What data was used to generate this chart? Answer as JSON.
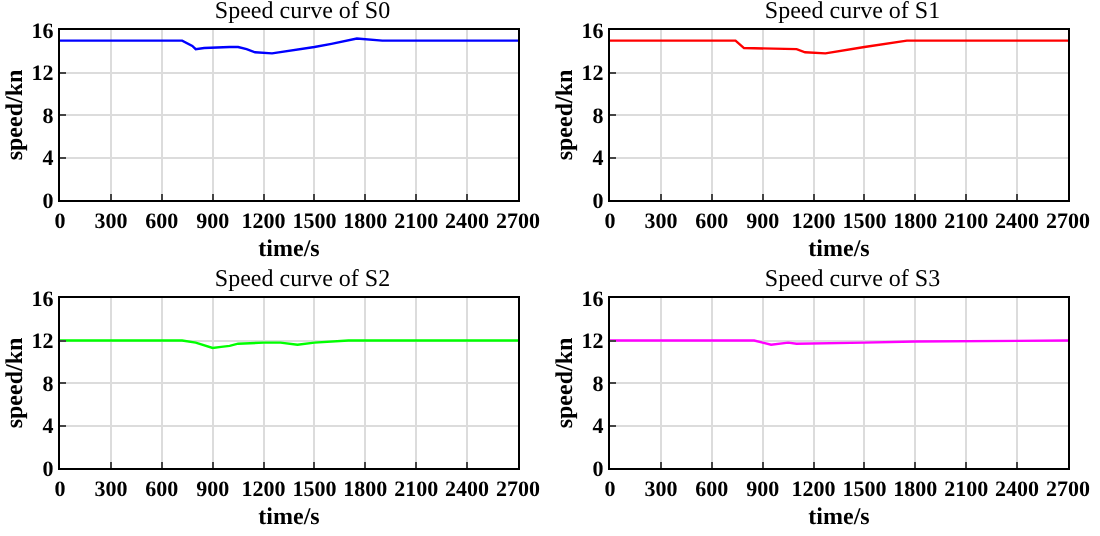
{
  "chart_data": [
    {
      "type": "line",
      "title": "Speed curve of S0",
      "xlabel": "time/s",
      "ylabel": "speed/kn",
      "xlim": [
        0,
        2700
      ],
      "xticks": [
        0,
        300,
        600,
        900,
        1200,
        1500,
        1800,
        2100,
        2400,
        2700
      ],
      "ylim": [
        0,
        16
      ],
      "yticks": [
        0,
        4,
        8,
        12,
        16
      ],
      "grid": true,
      "marker": "none",
      "line_style": "solid",
      "series": [
        {
          "color": "#0000ff",
          "x": [
            0,
            720,
            780,
            800,
            850,
            1000,
            1050,
            1100,
            1150,
            1250,
            1500,
            1600,
            1750,
            1900,
            2700
          ],
          "values": [
            15,
            15,
            14.5,
            14.2,
            14.3,
            14.4,
            14.4,
            14.2,
            13.9,
            13.8,
            14.4,
            14.7,
            15.2,
            15,
            15
          ]
        }
      ]
    },
    {
      "type": "line",
      "title": "Speed curve of S1",
      "xlabel": "time/s",
      "ylabel": "speed/kn",
      "xlim": [
        0,
        2700
      ],
      "xticks": [
        0,
        300,
        600,
        900,
        1200,
        1500,
        1800,
        2100,
        2400,
        2700
      ],
      "ylim": [
        0,
        16
      ],
      "yticks": [
        0,
        4,
        8,
        12,
        16
      ],
      "grid": true,
      "marker": "none",
      "line_style": "solid",
      "series": [
        {
          "color": "#ff0000",
          "x": [
            0,
            740,
            790,
            1100,
            1150,
            1270,
            1500,
            1750,
            2700
          ],
          "values": [
            15,
            15,
            14.3,
            14.2,
            13.9,
            13.8,
            14.4,
            15,
            15
          ]
        }
      ]
    },
    {
      "type": "line",
      "title": "Speed curve of S2",
      "xlabel": "time/s",
      "ylabel": "speed/kn",
      "xlim": [
        0,
        2700
      ],
      "xticks": [
        0,
        300,
        600,
        900,
        1200,
        1500,
        1800,
        2100,
        2400,
        2700
      ],
      "ylim": [
        0,
        16
      ],
      "yticks": [
        0,
        4,
        8,
        12,
        16
      ],
      "grid": true,
      "marker": "none",
      "line_style": "solid",
      "series": [
        {
          "color": "#00ff00",
          "x": [
            0,
            720,
            800,
            900,
            950,
            1000,
            1050,
            1200,
            1300,
            1400,
            1500,
            1700,
            2700
          ],
          "values": [
            12,
            12,
            11.8,
            11.3,
            11.4,
            11.5,
            11.7,
            11.8,
            11.8,
            11.6,
            11.8,
            12,
            12
          ]
        }
      ]
    },
    {
      "type": "line",
      "title": "Speed curve of S3",
      "xlabel": "time/s",
      "ylabel": "speed/kn",
      "xlim": [
        0,
        2700
      ],
      "xticks": [
        0,
        300,
        600,
        900,
        1200,
        1500,
        1800,
        2100,
        2400,
        2700
      ],
      "ylim": [
        0,
        16
      ],
      "yticks": [
        0,
        4,
        8,
        12,
        16
      ],
      "grid": true,
      "marker": "none",
      "line_style": "solid",
      "series": [
        {
          "color": "#ff00ff",
          "x": [
            0,
            850,
            900,
            950,
            1050,
            1100,
            1500,
            1800,
            2700
          ],
          "values": [
            12,
            12,
            11.8,
            11.6,
            11.8,
            11.7,
            11.8,
            11.9,
            12
          ]
        }
      ]
    }
  ]
}
